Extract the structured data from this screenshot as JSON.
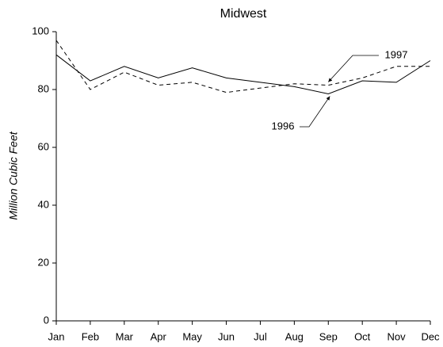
{
  "chart_data": {
    "type": "line",
    "title": "Midwest",
    "y_label": "Million Cubic Feet",
    "categories": [
      "Jan",
      "Feb",
      "Mar",
      "Apr",
      "May",
      "Jun",
      "Jul",
      "Aug",
      "Sep",
      "Oct",
      "Nov",
      "Dec"
    ],
    "series": [
      {
        "name": "1996",
        "color": "#000000",
        "linestyle": "solid",
        "values": [
          92,
          83,
          88,
          84,
          87.5,
          84,
          82.5,
          81,
          78.5,
          83,
          82.5,
          90
        ]
      },
      {
        "name": "1997",
        "color": "#000000",
        "linestyle": "dashed",
        "values": [
          97,
          80,
          86,
          81.5,
          82.5,
          79,
          80.5,
          82,
          81.5,
          84,
          88,
          88
        ]
      }
    ],
    "ylim": [
      0,
      100
    ],
    "yticks": [
      0,
      20,
      40,
      60,
      80,
      100
    ],
    "grid": false
  }
}
